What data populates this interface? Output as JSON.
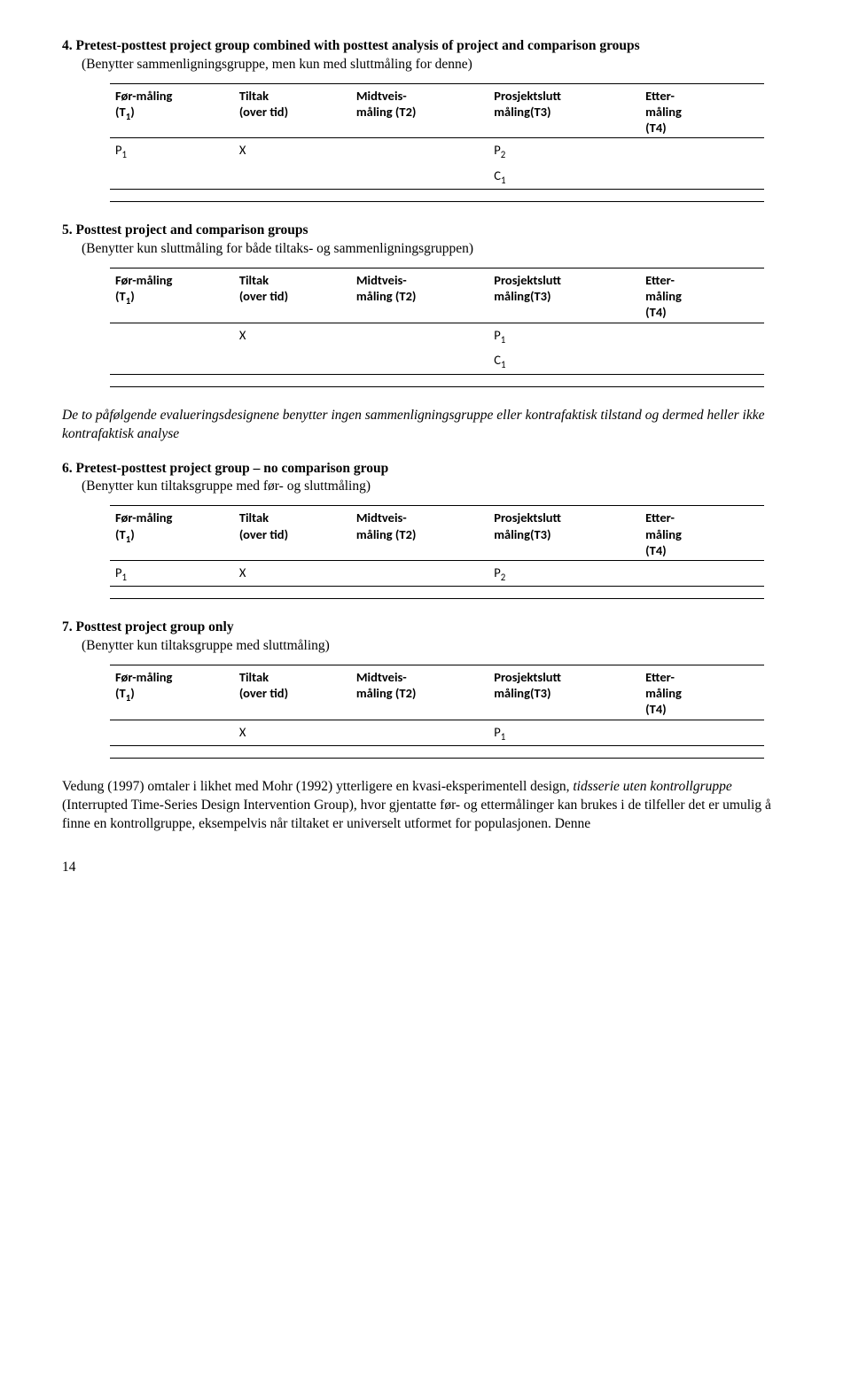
{
  "headers": {
    "c1": "Før-måling (T₁)",
    "c2": "Tiltak (over tid)",
    "c3": "Midtveis-måling (T2)",
    "c4": "Prosjektslutt måling(T3)",
    "c5": "Etter-måling (T4)"
  },
  "sections": [
    {
      "num": "4.",
      "title": "Pretest-posttest project group combined with posttest analysis of project and comparison groups",
      "sub": "(Benytter sammenligningsgruppe, men kun med sluttmåling for denne)",
      "rows": [
        {
          "c1": "P₁",
          "c2": "X",
          "c3": "",
          "c4": "P₂",
          "c5": ""
        },
        {
          "c1": "",
          "c2": "",
          "c3": "",
          "c4": "C₁",
          "c5": ""
        }
      ]
    },
    {
      "num": "5.",
      "title": "Posttest project and comparison groups",
      "sub": "(Benytter kun sluttmåling for både tiltaks- og sammenligningsgruppen)",
      "rows": [
        {
          "c1": "",
          "c2": "X",
          "c3": "",
          "c4": "P₁",
          "c5": ""
        },
        {
          "c1": "",
          "c2": "",
          "c3": "",
          "c4": "C₁",
          "c5": ""
        }
      ]
    }
  ],
  "midtext": "De to påfølgende evalueringsdesignene benytter ingen sammenligningsgruppe eller kontrafaktisk tilstand og dermed heller ikke kontrafaktisk analyse",
  "sections2": [
    {
      "num": "6.",
      "title": "Pretest-posttest project group – no comparison group",
      "sub": "(Benytter kun tiltaksgruppe med før- og sluttmåling)",
      "rows": [
        {
          "c1": "P₁",
          "c2": "X",
          "c3": "",
          "c4": "P₂",
          "c5": ""
        }
      ]
    },
    {
      "num": "7.",
      "title": "Posttest project group only",
      "sub": "(Benytter kun tiltaksgruppe med sluttmåling)",
      "rows": [
        {
          "c1": "",
          "c2": "X",
          "c3": "",
          "c4": "P₁",
          "c5": ""
        }
      ]
    }
  ],
  "bottom_text_a": "Vedung (1997) omtaler i likhet med Mohr (1992) ytterligere en kvasi-eksperimentell design, ",
  "bottom_text_italic": "tidsserie uten kontrollgruppe",
  "bottom_text_b": " (Interrupted Time-Series Design Intervention Group), hvor gjentatte før- og ettermålinger kan brukes i de tilfeller det er umulig å finne en kontrollgruppe, eksempelvis når tiltaket er universelt utformet for populasjonen. Denne",
  "page_number": "14"
}
